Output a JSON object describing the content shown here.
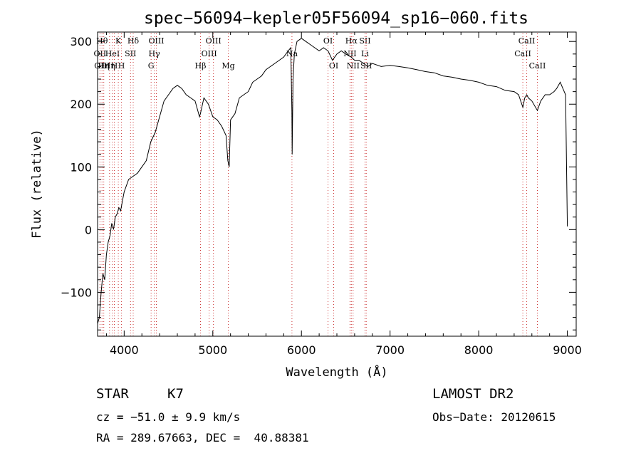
{
  "chart_data": {
    "type": "line",
    "title": "spec−56094−kepler05F56094_sp16−060.fits",
    "xlabel": "Wavelength (Å)",
    "ylabel": "Flux (relative)",
    "xlim": [
      3700,
      9100
    ],
    "ylim": [
      -170,
      315
    ],
    "xticks": [
      4000,
      5000,
      6000,
      7000,
      8000,
      9000
    ],
    "yticks": [
      -100,
      0,
      100,
      200,
      300
    ],
    "series": [
      {
        "x": [
          3700,
          3720,
          3740,
          3760,
          3780,
          3800,
          3820,
          3840,
          3860,
          3880,
          3900,
          3920,
          3940,
          3960,
          3980,
          4000,
          4050,
          4100,
          4150,
          4200,
          4250,
          4300,
          4350,
          4400,
          4450,
          4500,
          4550,
          4600,
          4650,
          4700,
          4750,
          4800,
          4850,
          4860,
          4900,
          4950,
          5000,
          5050,
          5100,
          5150,
          5170,
          5185,
          5200,
          5250,
          5300,
          5350,
          5400,
          5450,
          5500,
          5550,
          5600,
          5650,
          5700,
          5750,
          5800,
          5850,
          5880,
          5892,
          5895,
          5905,
          5920,
          5950,
          6000,
          6050,
          6100,
          6150,
          6200,
          6250,
          6300,
          6350,
          6400,
          6450,
          6500,
          6562,
          6600,
          6650,
          6700,
          6750,
          6800,
          6900,
          7000,
          7100,
          7200,
          7300,
          7400,
          7500,
          7600,
          7700,
          7800,
          7900,
          8000,
          8100,
          8200,
          8300,
          8400,
          8450,
          8498,
          8520,
          8542,
          8560,
          8600,
          8662,
          8700,
          8750,
          8800,
          8850,
          8880,
          8920,
          8950,
          8980,
          9000
        ],
        "y": [
          -150,
          -140,
          -100,
          -70,
          -80,
          -40,
          -20,
          -10,
          10,
          0,
          20,
          25,
          35,
          30,
          45,
          60,
          80,
          85,
          90,
          100,
          110,
          140,
          155,
          180,
          205,
          215,
          225,
          230,
          225,
          215,
          210,
          205,
          180,
          185,
          210,
          200,
          180,
          175,
          165,
          150,
          110,
          100,
          175,
          185,
          210,
          215,
          220,
          235,
          240,
          245,
          255,
          260,
          265,
          270,
          275,
          285,
          290,
          190,
          120,
          240,
          280,
          300,
          305,
          300,
          295,
          290,
          285,
          290,
          285,
          270,
          280,
          285,
          280,
          275,
          270,
          270,
          265,
          260,
          265,
          260,
          262,
          260,
          258,
          255,
          252,
          250,
          245,
          243,
          240,
          238,
          235,
          230,
          228,
          222,
          220,
          215,
          195,
          210,
          215,
          210,
          205,
          190,
          205,
          215,
          215,
          220,
          225,
          235,
          225,
          215,
          5
        ]
      }
    ],
    "grid": false,
    "lines": [
      {
        "x": 3727,
        "labels": [
          "OII"
        ],
        "row": [
          1
        ]
      },
      {
        "x": 3750,
        "labels": [
          "Hθ",
          "OIII"
        ],
        "row": [
          0,
          2
        ]
      },
      {
        "x": 3770,
        "labels": [
          "Hη"
        ],
        "row": [
          2
        ]
      },
      {
        "x": 3835,
        "labels": [
          "Hη"
        ],
        "row": [
          2
        ]
      },
      {
        "x": 3869,
        "labels": [
          "HeI"
        ],
        "row": [
          1
        ]
      },
      {
        "x": 3889,
        "labels": [
          "H"
        ],
        "row": [
          2
        ]
      },
      {
        "x": 3934,
        "labels": [
          "K"
        ],
        "row": [
          0
        ]
      },
      {
        "x": 3970,
        "labels": [
          "H"
        ],
        "row": [
          2
        ]
      },
      {
        "x": 4072,
        "labels": [
          "SII"
        ],
        "row": [
          1
        ]
      },
      {
        "x": 4102,
        "labels": [
          "Hδ"
        ],
        "row": [
          0
        ]
      },
      {
        "x": 4304,
        "labels": [
          "G"
        ],
        "row": [
          2
        ]
      },
      {
        "x": 4340,
        "labels": [
          "Hγ"
        ],
        "row": [
          1
        ]
      },
      {
        "x": 4363,
        "labels": [
          "OIII"
        ],
        "row": [
          0
        ]
      },
      {
        "x": 4861,
        "labels": [
          "Hβ"
        ],
        "row": [
          2
        ]
      },
      {
        "x": 4959,
        "labels": [
          "OIII"
        ],
        "row": [
          1
        ]
      },
      {
        "x": 5007,
        "labels": [
          "OIII"
        ],
        "row": [
          0
        ]
      },
      {
        "x": 5175,
        "labels": [
          "Mg"
        ],
        "row": [
          2
        ]
      },
      {
        "x": 5893,
        "labels": [
          "Na"
        ],
        "row": [
          1
        ]
      },
      {
        "x": 6300,
        "labels": [
          "OI"
        ],
        "row": [
          0
        ]
      },
      {
        "x": 6364,
        "labels": [
          "OI"
        ],
        "row": [
          2
        ]
      },
      {
        "x": 6548,
        "labels": [
          "NII"
        ],
        "row": [
          1
        ]
      },
      {
        "x": 6563,
        "labels": [
          "Hα"
        ],
        "row": [
          0
        ]
      },
      {
        "x": 6583,
        "labels": [
          "NII"
        ],
        "row": [
          2
        ]
      },
      {
        "x": 6717,
        "labels": [
          "SII",
          "Li"
        ],
        "row": [
          0,
          1
        ]
      },
      {
        "x": 6731,
        "labels": [
          "SII"
        ],
        "row": [
          2
        ]
      },
      {
        "x": 8498,
        "labels": [
          "CaII"
        ],
        "row": [
          1
        ]
      },
      {
        "x": 8542,
        "labels": [
          "CaII"
        ],
        "row": [
          0
        ]
      },
      {
        "x": 8662,
        "labels": [
          "CaII"
        ],
        "row": [
          2
        ]
      }
    ]
  },
  "info": {
    "obj_class": "STAR",
    "subclass": "K7",
    "survey": "LAMOST DR2",
    "cz": "cz = −51.0 ± 9.9 km/s",
    "obs_date": "Obs−Date: 20120615",
    "radec": "RA = 289.67663, DEC =  40.88381"
  },
  "colors": {
    "line": "#000000",
    "marker": "#cc3333",
    "background": "#ffffff"
  }
}
